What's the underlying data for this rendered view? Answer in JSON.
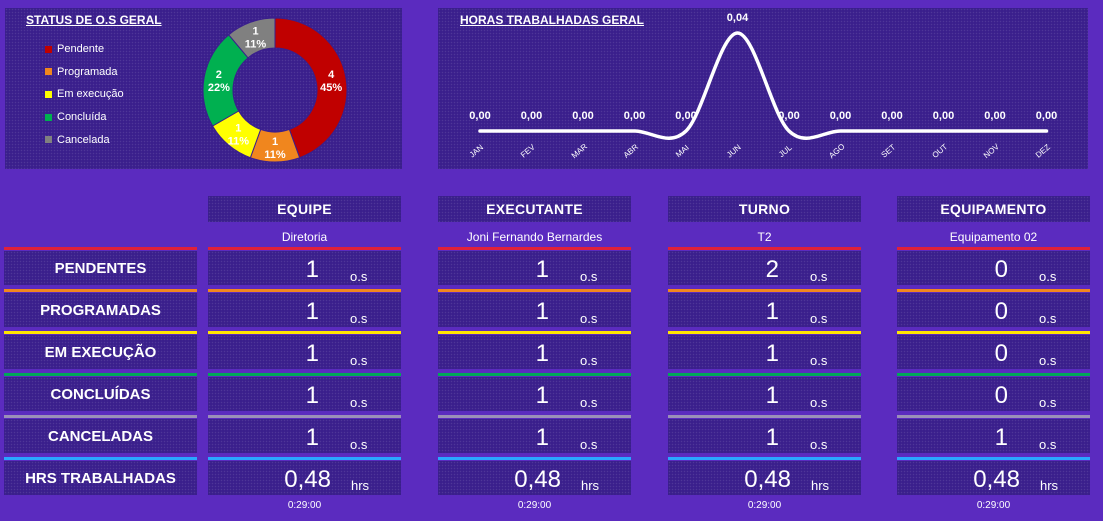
{
  "pie": {
    "title": "STATUS DE O.S GERAL",
    "legend": [
      {
        "label": "Pendente",
        "color": "#c00000"
      },
      {
        "label": "Programada",
        "color": "#f0861e"
      },
      {
        "label": "Em execução",
        "color": "#ffff00"
      },
      {
        "label": "Concluída",
        "color": "#00b050"
      },
      {
        "label": "Cancelada",
        "color": "#808080"
      }
    ]
  },
  "line": {
    "title": "HORAS TRABALHADAS GERAL"
  },
  "chart_data": [
    {
      "type": "pie",
      "title": "STATUS DE O.S GERAL",
      "categories": [
        "Pendente",
        "Programada",
        "Em execução",
        "Concluída",
        "Cancelada"
      ],
      "values": [
        4,
        1,
        1,
        2,
        1
      ],
      "labels": [
        "4\n45%",
        "1\n11%",
        "1\n11%",
        "2\n22%",
        "1\n11%"
      ],
      "colors": [
        "#c00000",
        "#f0861e",
        "#ffff00",
        "#00b050",
        "#808080"
      ],
      "legend": "left"
    },
    {
      "type": "line",
      "title": "HORAS TRABALHADAS GERAL",
      "categories": [
        "JAN",
        "FEV",
        "MAR",
        "ABR",
        "MAI",
        "JUN",
        "JUL",
        "AGO",
        "SET",
        "OUT",
        "NOV",
        "DEZ"
      ],
      "values": [
        0,
        0,
        0,
        0,
        0,
        0.04,
        0,
        0,
        0,
        0,
        0,
        0
      ],
      "data_labels": [
        "0,00",
        "0,00",
        "0,00",
        "0,00",
        "0,00",
        "0,04",
        "0,00",
        "0,00",
        "0,00",
        "0,00",
        "0,00",
        "0,00"
      ],
      "smooth": true,
      "color": "#ffffff"
    }
  ],
  "table": {
    "columns": [
      {
        "header": "EQUIPE",
        "filter": "Diretoria",
        "values": [
          "1",
          "1",
          "1",
          "1",
          "1"
        ],
        "hours": "0,48",
        "time": "0:29:00"
      },
      {
        "header": "EXECUTANTE",
        "filter": "Joni Fernando Bernardes",
        "values": [
          "1",
          "1",
          "1",
          "1",
          "1"
        ],
        "hours": "0,48",
        "time": "0:29:00"
      },
      {
        "header": "TURNO",
        "filter": "T2",
        "values": [
          "2",
          "1",
          "1",
          "1",
          "1"
        ],
        "hours": "0,48",
        "time": "0:29:00"
      },
      {
        "header": "EQUIPAMENTO",
        "filter": "Equipamento 02",
        "values": [
          "0",
          "0",
          "0",
          "0",
          "1"
        ],
        "hours": "0,48",
        "time": "0:29:00"
      }
    ],
    "rows": [
      {
        "label": "PENDENTES",
        "color": "#e0213a"
      },
      {
        "label": "PROGRAMADAS",
        "color": "#f0861e"
      },
      {
        "label": "EM EXECUÇÃO",
        "color": "#ffe500"
      },
      {
        "label": "CONCLUÍDAS",
        "color": "#00a859"
      },
      {
        "label": "CANCELADAS",
        "color": "#9a8fb8"
      },
      {
        "label": "HRS TRABALHADAS",
        "color": "#2aa6ff"
      }
    ],
    "unit_os": "o.s",
    "unit_hrs": "hrs"
  }
}
